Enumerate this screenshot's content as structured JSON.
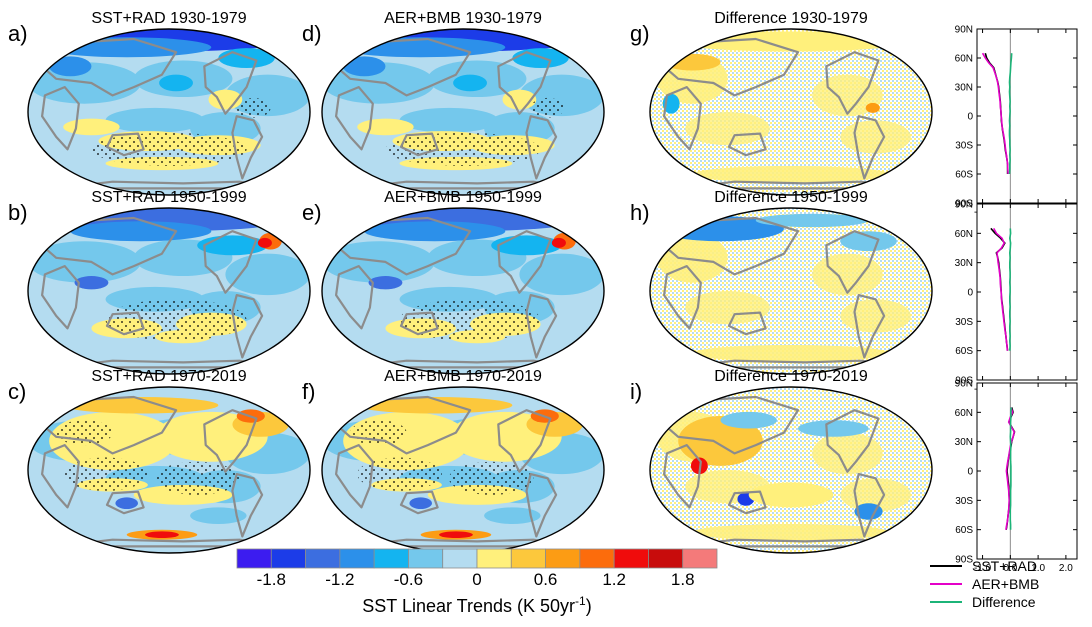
{
  "colors": {
    "levels": [
      "#3c1cf0",
      "#1c3ce8",
      "#3c6ee0",
      "#2c90ea",
      "#14b4f0",
      "#74c8ec",
      "#b4dcf0",
      "#fff07c",
      "#fcc83c",
      "#fc9c14",
      "#fc6c0c",
      "#f00c0c",
      "#c80c0c",
      "#f47a7a"
    ],
    "coast": "#8c8c8c",
    "stipple": "#000000",
    "sst_rad": "#000000",
    "aer_bmb": "#e400c8",
    "difference": "#1cb478",
    "zero_line": "#8c8c8c"
  },
  "chart_data": [
    {
      "type": "heatmap",
      "panel": "a)",
      "title": "SST+RAD 1930-1979",
      "pattern": "exp_early"
    },
    {
      "type": "heatmap",
      "panel": "b)",
      "title": "SST+RAD 1950-1999",
      "pattern": "exp_mid"
    },
    {
      "type": "heatmap",
      "panel": "c)",
      "title": "SST+RAD 1970-2019",
      "pattern": "exp_late"
    },
    {
      "type": "heatmap",
      "panel": "d)",
      "title": "AER+BMB 1930-1979",
      "pattern": "exp_early"
    },
    {
      "type": "heatmap",
      "panel": "e)",
      "title": "AER+BMB 1950-1999",
      "pattern": "exp_mid"
    },
    {
      "type": "heatmap",
      "panel": "f)",
      "title": "AER+BMB 1970-2019",
      "pattern": "exp_late"
    },
    {
      "type": "heatmap",
      "panel": "g)",
      "title": "Difference 1930-1979",
      "pattern": "diff_early"
    },
    {
      "type": "heatmap",
      "panel": "h)",
      "title": "Difference 1950-1999",
      "pattern": "diff_mid"
    },
    {
      "type": "heatmap",
      "panel": "i)",
      "title": "Difference 1970-2019",
      "pattern": "diff_late"
    },
    {
      "type": "line",
      "xlim": [
        -1.2,
        2.4
      ],
      "ylim": [
        -90,
        90
      ],
      "xticks": [
        "-1.0",
        "0.0",
        "1.0",
        "2.0"
      ],
      "yticks": [
        "90N",
        "60N",
        "30N",
        "0",
        "30S",
        "60S",
        "90S"
      ],
      "yvals": [
        90,
        60,
        30,
        0,
        -30,
        -60,
        -90
      ],
      "legend": [
        "SST+RAD",
        "AER+BMB",
        "Difference"
      ],
      "profiles": [
        {
          "lat": [
            65,
            60,
            55,
            50,
            45,
            40,
            35,
            30,
            25,
            20,
            15,
            10,
            5,
            0,
            -5,
            -10,
            -15,
            -20,
            -25,
            -30,
            -35,
            -40,
            -45,
            -50,
            -55,
            -60
          ],
          "sst_rad": [
            -0.9,
            -0.85,
            -0.75,
            -0.6,
            -0.55,
            -0.5,
            -0.45,
            -0.42,
            -0.4,
            -0.38,
            -0.36,
            -0.35,
            -0.34,
            -0.33,
            -0.32,
            -0.3,
            -0.28,
            -0.25,
            -0.22,
            -0.2,
            -0.18,
            -0.15,
            -0.12,
            -0.1,
            -0.1,
            -0.1
          ],
          "aer_bmb": [
            -1.0,
            -0.9,
            -0.78,
            -0.62,
            -0.56,
            -0.5,
            -0.46,
            -0.43,
            -0.41,
            -0.39,
            -0.37,
            -0.36,
            -0.34,
            -0.33,
            -0.31,
            -0.3,
            -0.27,
            -0.24,
            -0.21,
            -0.19,
            -0.17,
            -0.14,
            -0.12,
            -0.1,
            -0.09,
            -0.08
          ],
          "difference": [
            0.05,
            0.04,
            0.02,
            0.01,
            0.0,
            -0.02,
            -0.03,
            -0.02,
            -0.03,
            -0.02,
            -0.01,
            -0.02,
            -0.01,
            -0.02,
            -0.03,
            -0.02,
            -0.03,
            -0.03,
            -0.02,
            -0.02,
            -0.01,
            -0.02,
            -0.01,
            -0.02,
            -0.02,
            -0.03
          ]
        },
        {
          "lat": [
            65,
            60,
            55,
            50,
            45,
            40,
            35,
            30,
            25,
            20,
            15,
            10,
            5,
            0,
            -5,
            -10,
            -15,
            -20,
            -25,
            -30,
            -35,
            -40,
            -45,
            -50,
            -55,
            -60
          ],
          "sst_rad": [
            -0.7,
            -0.55,
            -0.35,
            -0.2,
            -0.3,
            -0.5,
            -0.45,
            -0.42,
            -0.4,
            -0.38,
            -0.36,
            -0.35,
            -0.34,
            -0.33,
            -0.32,
            -0.3,
            -0.28,
            -0.26,
            -0.24,
            -0.22,
            -0.2,
            -0.18,
            -0.16,
            -0.14,
            -0.12,
            -0.1
          ],
          "aer_bmb": [
            -0.6,
            -0.5,
            -0.3,
            -0.22,
            -0.32,
            -0.48,
            -0.46,
            -0.44,
            -0.41,
            -0.39,
            -0.37,
            -0.36,
            -0.35,
            -0.33,
            -0.32,
            -0.31,
            -0.29,
            -0.27,
            -0.25,
            -0.23,
            -0.21,
            -0.19,
            -0.16,
            -0.14,
            -0.12,
            -0.11
          ],
          "difference": [
            0.0,
            0.01,
            -0.02,
            0.01,
            0.0,
            -0.02,
            -0.01,
            -0.02,
            -0.02,
            -0.01,
            -0.01,
            -0.02,
            -0.01,
            -0.01,
            -0.02,
            -0.02,
            -0.01,
            -0.02,
            -0.02,
            -0.01,
            -0.02,
            -0.02,
            -0.01,
            -0.02,
            -0.01,
            -0.02
          ]
        },
        {
          "lat": [
            65,
            60,
            55,
            50,
            45,
            40,
            35,
            30,
            25,
            20,
            15,
            10,
            5,
            0,
            -5,
            -10,
            -15,
            -20,
            -25,
            -30,
            -35,
            -40,
            -45,
            -50,
            -55,
            -60
          ],
          "sst_rad": [
            0.05,
            0.1,
            0.02,
            -0.05,
            0.05,
            0.15,
            0.1,
            0.05,
            0.02,
            -0.02,
            -0.05,
            -0.08,
            -0.1,
            -0.12,
            -0.1,
            -0.08,
            -0.06,
            -0.05,
            -0.04,
            -0.03,
            -0.04,
            -0.06,
            -0.08,
            -0.1,
            -0.12,
            -0.15
          ],
          "aer_bmb": [
            0.02,
            0.08,
            0.0,
            -0.06,
            0.04,
            0.14,
            0.1,
            0.04,
            0.0,
            -0.03,
            -0.06,
            -0.09,
            -0.12,
            -0.14,
            -0.12,
            -0.1,
            -0.08,
            -0.06,
            -0.05,
            -0.04,
            -0.05,
            -0.06,
            -0.08,
            -0.1,
            -0.13,
            -0.16
          ],
          "difference": [
            0.03,
            0.02,
            0.02,
            0.01,
            0.01,
            0.01,
            0.0,
            0.01,
            0.02,
            0.01,
            0.01,
            0.01,
            0.02,
            0.02,
            0.02,
            0.02,
            0.02,
            0.01,
            0.01,
            0.01,
            0.01,
            0.0,
            0.0,
            0.0,
            0.01,
            0.01
          ]
        }
      ]
    },
    {
      "type": "colorbar",
      "labels": [
        "-1.8",
        "-1.2",
        "-0.6",
        "0",
        "0.6",
        "1.2",
        "1.8"
      ],
      "label_values": [
        -1.8,
        -1.2,
        -0.6,
        0,
        0.6,
        1.2,
        1.8
      ],
      "bounds": [
        -2.1,
        -1.8,
        -1.5,
        -1.2,
        -0.9,
        -0.6,
        -0.3,
        0,
        0.3,
        0.6,
        0.9,
        1.2,
        1.5,
        1.8,
        2.1
      ],
      "title_main": "SST Linear Trends (K 50yr",
      "title_sup": "-1",
      "title_end": ")"
    }
  ]
}
